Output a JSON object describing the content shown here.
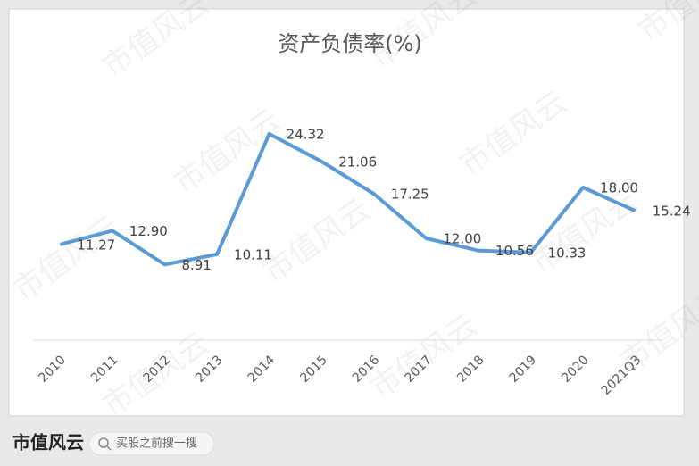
{
  "chart_data": {
    "type": "line",
    "title": "资产负债率(%)",
    "categories": [
      "2010",
      "2011",
      "2012",
      "2013",
      "2014",
      "2015",
      "2016",
      "2017",
      "2018",
      "2019",
      "2020",
      "2021Q3"
    ],
    "series": [
      {
        "name": "资产负债率",
        "color": "#5b9bd5",
        "values": [
          11.27,
          12.9,
          8.91,
          10.11,
          24.32,
          21.06,
          17.25,
          12.0,
          10.56,
          10.33,
          18.0,
          15.24
        ],
        "value_labels": [
          "11.27",
          "12.90",
          "8.91",
          "10.11",
          "24.32",
          "21.06",
          "17.25",
          "12.00",
          "10.56",
          "10.33",
          "18.00",
          "15.24"
        ]
      }
    ],
    "ylim": [
      0,
      30
    ]
  },
  "watermark": "市值风云",
  "footer": {
    "logo": "市值风云",
    "search": "买股之前搜一搜"
  }
}
